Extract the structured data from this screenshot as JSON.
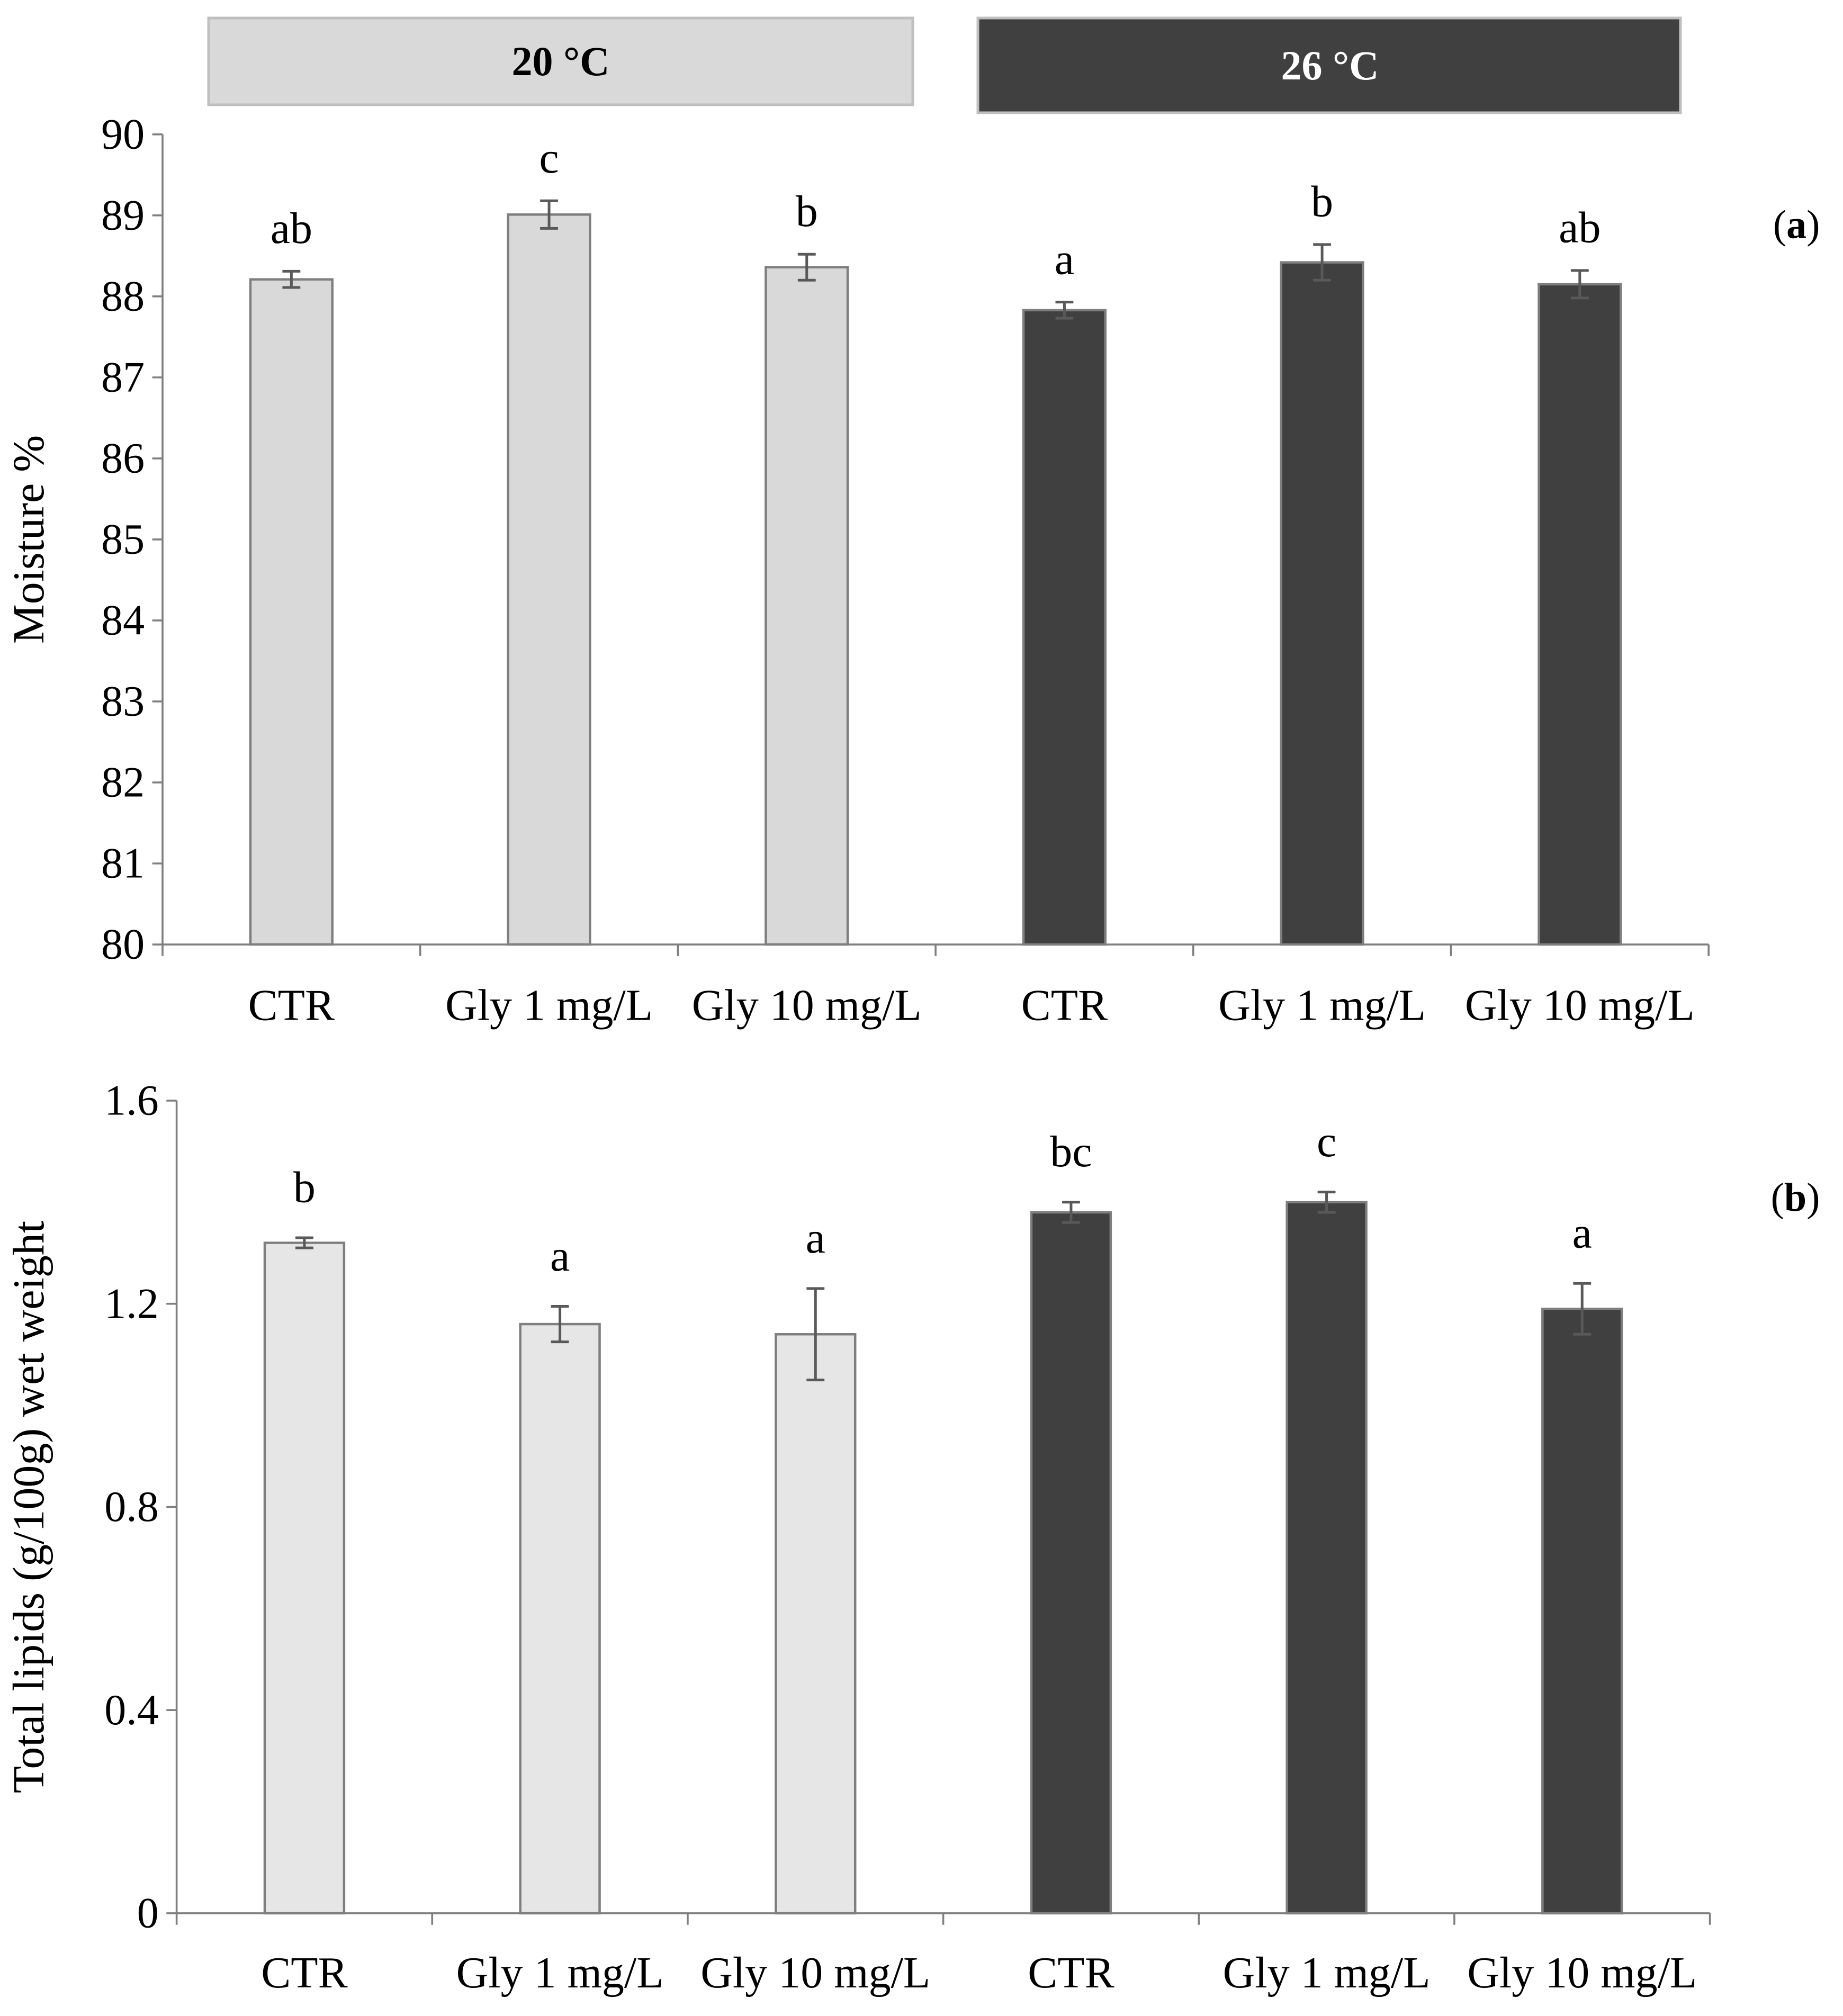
{
  "legend": {
    "groups": [
      {
        "label": "20 °C",
        "color": "#d9d9d9",
        "text_color": "#000000",
        "border": "#bfbfbf"
      },
      {
        "label": "26 °C",
        "color": "#404040",
        "text_color": "#ffffff",
        "border": "#bfbfbf"
      }
    ]
  },
  "chart_data": [
    {
      "type": "bar",
      "panel": "a",
      "panel_label": {
        "open": "(",
        "letter": "a",
        "close": ")"
      },
      "ylabel": "Moisture %",
      "xlabel": "",
      "ylim": [
        80,
        90
      ],
      "yticks": [
        80,
        81,
        82,
        83,
        84,
        85,
        86,
        87,
        88,
        89,
        90
      ],
      "ytick_labels": [
        "80",
        "81",
        "82",
        "83",
        "84",
        "85",
        "86",
        "87",
        "88",
        "89",
        "90"
      ],
      "categories": [
        "CTR",
        "Gly 1 mg/L",
        "Gly 10 mg/L",
        "CTR",
        "Gly 1 mg/L",
        "Gly 10 mg/L"
      ],
      "groups": [
        "20 °C",
        "20 °C",
        "20 °C",
        "26 °C",
        "26 °C",
        "26 °C"
      ],
      "values": [
        88.21,
        89.01,
        88.36,
        87.83,
        88.42,
        88.15
      ],
      "errors": [
        0.1,
        0.17,
        0.16,
        0.1,
        0.22,
        0.17
      ],
      "letters": [
        "ab",
        "c",
        "b",
        "a",
        "b",
        "ab"
      ],
      "colors": {
        "20 °C": "#d9d9d9",
        "26 °C": "#404040"
      },
      "grid": false
    },
    {
      "type": "bar",
      "panel": "b",
      "panel_label": {
        "open": "(",
        "letter": "b",
        "close": ")"
      },
      "ylabel": "Total lipids (g/100g) wet weight",
      "xlabel": "",
      "ylim": [
        0,
        1.6
      ],
      "yticks": [
        0,
        0.4,
        0.8,
        1.2,
        1.6
      ],
      "ytick_labels": [
        "0",
        "0.4",
        "0.8",
        "1.2",
        "1.6"
      ],
      "categories": [
        "CTR",
        "Gly 1 mg/L",
        "Gly 10 mg/L",
        "CTR",
        "Gly 1 mg/L",
        "Gly 10 mg/L"
      ],
      "groups": [
        "20 °C",
        "20 °C",
        "20 °C",
        "26 °C",
        "26 °C",
        "26 °C"
      ],
      "values": [
        1.32,
        1.16,
        1.14,
        1.38,
        1.4,
        1.19
      ],
      "errors": [
        0.01,
        0.035,
        0.09,
        0.02,
        0.02,
        0.05
      ],
      "letters": [
        "b",
        "a",
        "a",
        "bc",
        "c",
        "a"
      ],
      "colors": {
        "20 °C": "#e6e6e6",
        "26 °C": "#404040"
      },
      "grid": false
    }
  ]
}
